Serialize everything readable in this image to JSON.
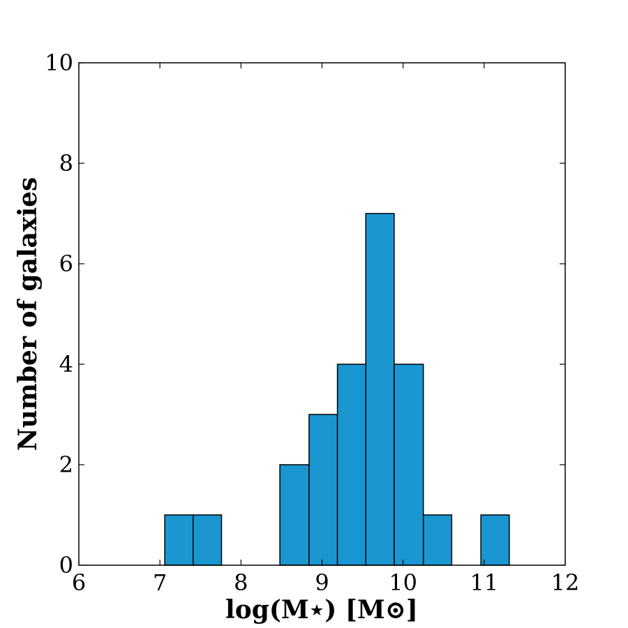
{
  "chart_data": {
    "type": "bar",
    "title": "",
    "xlabel": "log(M⋆) [M⊙]",
    "ylabel": "Number of galaxies",
    "xlim": [
      6,
      12
    ],
    "ylim": [
      0,
      10
    ],
    "xticks": [
      6,
      7,
      8,
      9,
      10,
      11,
      12
    ],
    "yticks": [
      0,
      2,
      4,
      6,
      8,
      10
    ],
    "grid": false,
    "bar_color": "#1a96d0",
    "edge_color": "#000000",
    "bins": [
      {
        "x_start": 7.06,
        "x_end": 7.41,
        "count": 1
      },
      {
        "x_start": 7.41,
        "x_end": 7.76,
        "count": 1
      },
      {
        "x_start": 8.48,
        "x_end": 8.84,
        "count": 2
      },
      {
        "x_start": 8.84,
        "x_end": 9.19,
        "count": 3
      },
      {
        "x_start": 9.19,
        "x_end": 9.54,
        "count": 4
      },
      {
        "x_start": 9.54,
        "x_end": 9.89,
        "count": 7
      },
      {
        "x_start": 9.89,
        "x_end": 10.25,
        "count": 4
      },
      {
        "x_start": 10.25,
        "x_end": 10.6,
        "count": 1
      },
      {
        "x_start": 10.96,
        "x_end": 11.31,
        "count": 1
      }
    ]
  }
}
